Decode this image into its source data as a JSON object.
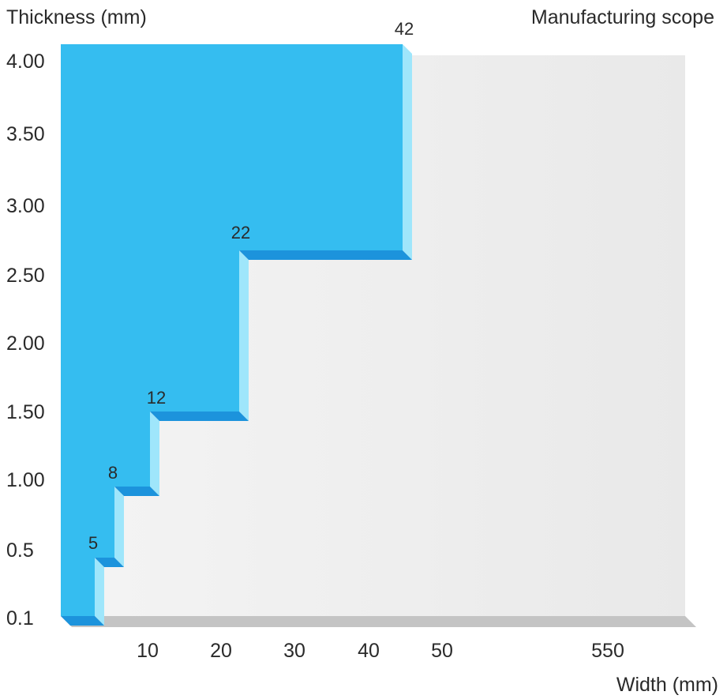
{
  "chart_data": {
    "type": "area",
    "title": "Manufacturing scope",
    "xlabel": "Width (mm)",
    "ylabel": "Thickness (mm)",
    "x_ticks": [
      "10",
      "20",
      "30",
      "40",
      "50",
      "550"
    ],
    "y_ticks": [
      "0.1",
      "0.5",
      "1.00",
      "1.50",
      "2.00",
      "2.50",
      "3.00",
      "3.50",
      "4.00"
    ],
    "steps": [
      {
        "width": "5",
        "thickness_max": "0.5"
      },
      {
        "width": "8",
        "thickness_max": "1.00"
      },
      {
        "width": "12",
        "thickness_max": "1.50"
      },
      {
        "width": "22",
        "thickness_max": "2.50"
      },
      {
        "width": "42",
        "thickness_max": "4.00"
      }
    ],
    "grid": false,
    "colors": {
      "fill": "#35bdf0",
      "ledge": "#1c93dc",
      "right_face": "#9fe6fb",
      "background_panel": "#efefef",
      "floor_shadow": "#c4c4c4"
    }
  }
}
